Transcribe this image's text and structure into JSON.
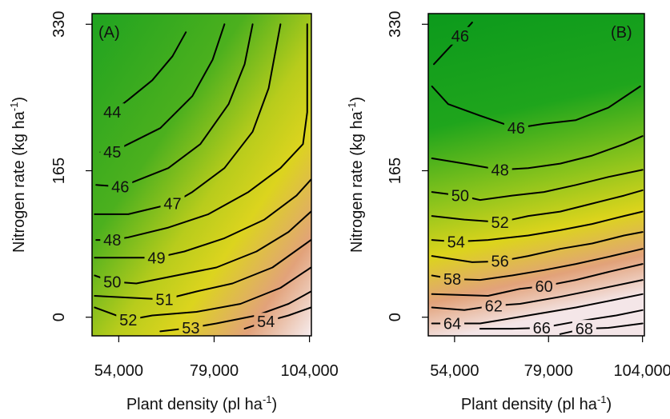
{
  "chart_data": [
    {
      "type": "contour",
      "panel_label": "(A)",
      "xlabel": [
        "Plant density (pl ha",
        "-1",
        ")"
      ],
      "ylabel": [
        "Nitrogen rate (kg ha",
        "-1",
        ")"
      ],
      "xlim": [
        47000,
        104500
      ],
      "ylim": [
        -21,
        342
      ],
      "xticks": [
        {
          "value": 54000,
          "label": "54,000"
        },
        {
          "value": 79000,
          "label": "79,000"
        },
        {
          "value": 104000,
          "label": "104,000"
        }
      ],
      "yticks": [
        0,
        165,
        330
      ],
      "contours": [
        {
          "level": 44,
          "x": [
            50200,
            52300,
            56500,
            62800,
            68100,
            71600
          ],
          "y": [
            227,
            231,
            245,
            267,
            294,
            321
          ]
        },
        {
          "level": 45,
          "x": [
            49200,
            52300,
            56500,
            64900,
            73300,
            78600,
            81700
          ],
          "y": [
            186,
            186,
            195,
            213,
            249,
            290,
            330
          ]
        },
        {
          "level": 46,
          "x": [
            48100,
            54400,
            57600,
            67000,
            75400,
            82800,
            87000,
            89100
          ],
          "y": [
            149,
            147,
            152,
            168,
            195,
            240,
            285,
            330
          ]
        },
        {
          "level": 47,
          "x": [
            47700,
            56500,
            68100,
            73300,
            81700,
            89100,
            93300,
            96400
          ],
          "y": [
            116,
            116,
            128,
            141,
            168,
            209,
            258,
            330
          ]
        },
        {
          "level": 48,
          "x": [
            48100,
            52300,
            56500,
            67000,
            77500,
            88000,
            96400,
            102300,
            103400,
            103400
          ],
          "y": [
            87,
            87,
            90,
            101,
            116,
            141,
            168,
            195,
            231,
            330
          ]
        },
        {
          "level": 49,
          "x": [
            47700,
            63900,
            71200,
            81700,
            92200,
            100600,
            104400
          ],
          "y": [
            67,
            67,
            74,
            89,
            110,
            137,
            155
          ]
        },
        {
          "level": 50,
          "x": [
            47700,
            52300,
            58600,
            69100,
            79600,
            90100,
            98500,
            104400
          ],
          "y": [
            47,
            40,
            38,
            47,
            56,
            74,
            96,
            119
          ]
        },
        {
          "level": 51,
          "x": [
            47700,
            66000,
            74400,
            83800,
            94300,
            104400
          ],
          "y": [
            24,
            20,
            29,
            38,
            56,
            87
          ]
        },
        {
          "level": 52,
          "x": [
            47700,
            56500,
            62800,
            74400,
            85900,
            96400,
            104400
          ],
          "y": [
            11,
            -3,
            2,
            6,
            15,
            33,
            56
          ]
        },
        {
          "level": 53,
          "x": [
            64900,
            72900,
            79600,
            90100,
            98500,
            104400
          ],
          "y": [
            -16,
            -12,
            -7,
            2,
            15,
            29
          ]
        },
        {
          "level": 54,
          "x": [
            87000,
            92600,
            98500,
            104400
          ],
          "y": [
            -13,
            -5,
            2,
            11
          ]
        }
      ]
    },
    {
      "type": "contour",
      "panel_label": "(B)",
      "xlabel": [
        "Plant density (pl ha",
        "-1",
        ")"
      ],
      "ylabel": [
        "Nitrogen rate (kg ha",
        "-1",
        ")"
      ],
      "xlim": [
        47000,
        104500
      ],
      "ylim": [
        -21,
        342
      ],
      "xticks": [
        {
          "value": 54000,
          "label": "54,000"
        },
        {
          "value": 79000,
          "label": "79,000"
        },
        {
          "value": 104000,
          "label": "104,000"
        }
      ],
      "yticks": [
        0,
        165,
        330
      ],
      "contours": [
        {
          "level": 46,
          "x": [
            48500,
            55500,
            58700
          ],
          "y": [
            285,
            317,
            332
          ]
        },
        {
          "level": 46,
          "x": [
            48000,
            52300,
            60800,
            70400,
            77800,
            86300,
            94900,
            103400
          ],
          "y": [
            260,
            240,
            227,
            213,
            218,
            222,
            236,
            260
          ]
        },
        {
          "level": 48,
          "x": [
            48000,
            56600,
            66100,
            73600,
            82100,
            90600,
            99100,
            104000
          ],
          "y": [
            179,
            173,
            166,
            168,
            173,
            182,
            195,
            204
          ]
        },
        {
          "level": 50,
          "x": [
            48000,
            55500,
            60800,
            69300,
            77800,
            86300,
            94900,
            104000
          ],
          "y": [
            141,
            137,
            132,
            137,
            141,
            149,
            158,
            166
          ]
        },
        {
          "level": 52,
          "x": [
            48000,
            56600,
            66100,
            73600,
            82100,
            90600,
            99100,
            104000
          ],
          "y": [
            114,
            110,
            107,
            114,
            119,
            128,
            137,
            143
          ]
        },
        {
          "level": 54,
          "x": [
            48000,
            54400,
            62900,
            73600,
            82100,
            90600,
            99100,
            104000
          ],
          "y": [
            87,
            85,
            87,
            92,
            98,
            105,
            114,
            119
          ]
        },
        {
          "level": 56,
          "x": [
            48000,
            58700,
            66100,
            73600,
            82100,
            90600,
            99100,
            104000
          ],
          "y": [
            69,
            62,
            63,
            69,
            77,
            83,
            92,
            96
          ]
        },
        {
          "level": 58,
          "x": [
            48000,
            53400,
            60800,
            69300,
            77800,
            86300,
            94900,
            104000
          ],
          "y": [
            47,
            43,
            42,
            47,
            53,
            60,
            68,
            77
          ]
        },
        {
          "level": 60,
          "x": [
            48000,
            62900,
            71400,
            77800,
            86300,
            94900,
            104000
          ],
          "y": [
            26,
            24,
            32,
            35,
            42,
            51,
            60
          ]
        },
        {
          "level": 62,
          "x": [
            48000,
            56600,
            64400,
            71400,
            82100,
            92700,
            104000
          ],
          "y": [
            11,
            8,
            13,
            15,
            23,
            32,
            42
          ]
        },
        {
          "level": 64,
          "x": [
            48000,
            53400,
            60800,
            73600,
            86300,
            97000,
            104000
          ],
          "y": [
            -7,
            -7,
            -7,
            2,
            11,
            20,
            26
          ]
        },
        {
          "level": 66,
          "x": [
            60800,
            69300,
            77200,
            86300,
            97000,
            104000
          ],
          "y": [
            -13,
            -13,
            -12,
            -5,
            2,
            8
          ]
        },
        {
          "level": 68,
          "x": [
            82100,
            88500,
            94900,
            104000
          ],
          "y": [
            -19,
            -13,
            -12,
            -7
          ]
        }
      ]
    }
  ]
}
